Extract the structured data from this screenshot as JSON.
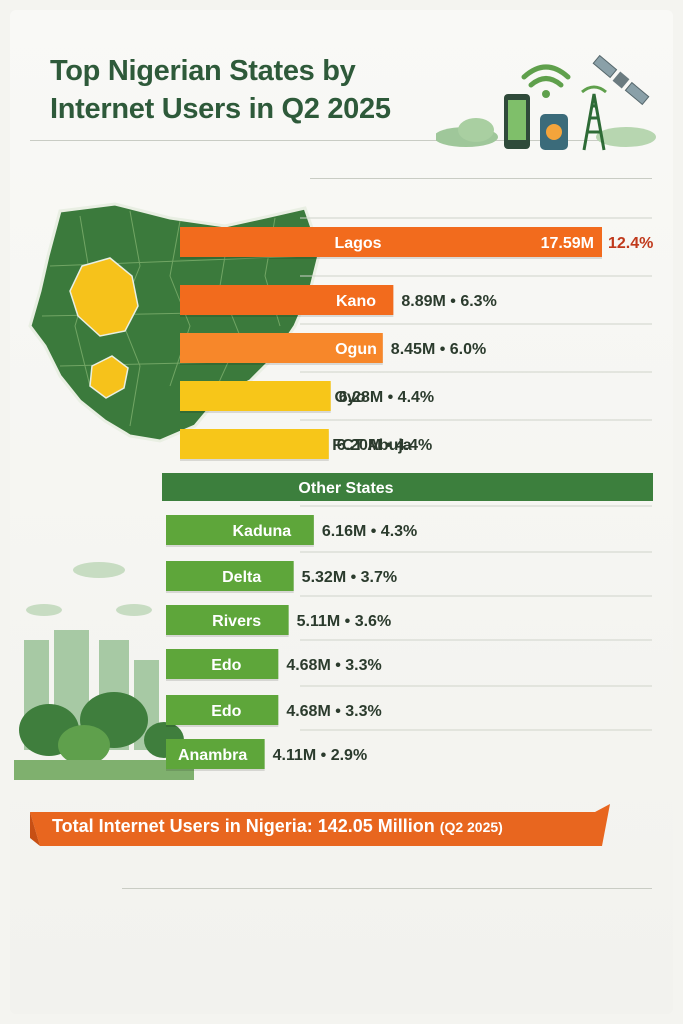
{
  "title": "Top Nigerian States by Internet Users in Q2 2025",
  "total": {
    "label": "Total Internet Users in Nigeria: 142.05 Million",
    "period": "(Q2 2025)"
  },
  "colors": {
    "title": "#2e5a3a",
    "map_green": "#3b7a3c",
    "map_highlight": "#f6c21b",
    "orange": "#f26b1d",
    "orange_light": "#f7872a",
    "yellow": "#f7c619",
    "green_band": "#3c7f3d",
    "green_bar": "#5ea63a",
    "banner": "#e8661f",
    "value_text": "#2b3b2d",
    "lagos_pct": "#c0391b"
  },
  "icons": [
    "smartphone-icon",
    "wifi-icon",
    "satellite-icon",
    "cell-tower-icon",
    "nigeria-map-icon",
    "city-trees-icon"
  ],
  "chart_data": {
    "type": "bar",
    "orientation": "horizontal",
    "title": "Top Nigerian States by Internet Users in Q2 2025",
    "unit": "M",
    "group_label": "Other States",
    "rows": [
      {
        "label": "Lagos",
        "value": 17.59,
        "value_label": "17.59M",
        "pct": 12.4,
        "pct_label": "12.4%",
        "color": "#f26b1d"
      },
      {
        "label": "Kano",
        "value": 8.89,
        "value_label": "8.89M",
        "pct": 6.3,
        "pct_label": "6.3%",
        "color": "#f26b1d"
      },
      {
        "label": "Ogun",
        "value": 8.45,
        "value_label": "8.45M",
        "pct": 6.0,
        "pct_label": "6.0%",
        "color": "#f7872a"
      },
      {
        "label": "Oyo",
        "value": 6.28,
        "value_label": "6.28M",
        "pct": 4.4,
        "pct_label": "4.4%",
        "color": "#f7c619"
      },
      {
        "label": "FCT Abuja",
        "value": 6.2,
        "value_label": "6.20M",
        "pct": 4.4,
        "pct_label": "4.4%",
        "color": "#f7c619"
      },
      {
        "label": "Kaduna",
        "value": 6.16,
        "value_label": "6.16M",
        "pct": 4.3,
        "pct_label": "4.3%",
        "color": "#5ea63a"
      },
      {
        "label": "Delta",
        "value": 5.32,
        "value_label": "5.32M",
        "pct": 3.7,
        "pct_label": "3.7%",
        "color": "#5ea63a"
      },
      {
        "label": "Rivers",
        "value": 5.11,
        "value_label": "5.11M",
        "pct": 3.6,
        "pct_label": "3.6%",
        "color": "#5ea63a"
      },
      {
        "label": "Edo",
        "value": 4.68,
        "value_label": "4.68M",
        "pct": 3.3,
        "pct_label": "3.3%",
        "color": "#5ea63a"
      },
      {
        "label": "Edo",
        "value": 4.68,
        "value_label": "4.68M",
        "pct": 3.3,
        "pct_label": "3.3%",
        "color": "#5ea63a"
      },
      {
        "label": "Anambra",
        "value": 4.11,
        "value_label": "4.11M",
        "pct": 2.9,
        "pct_label": "2.9%",
        "color": "#5ea63a"
      }
    ]
  }
}
